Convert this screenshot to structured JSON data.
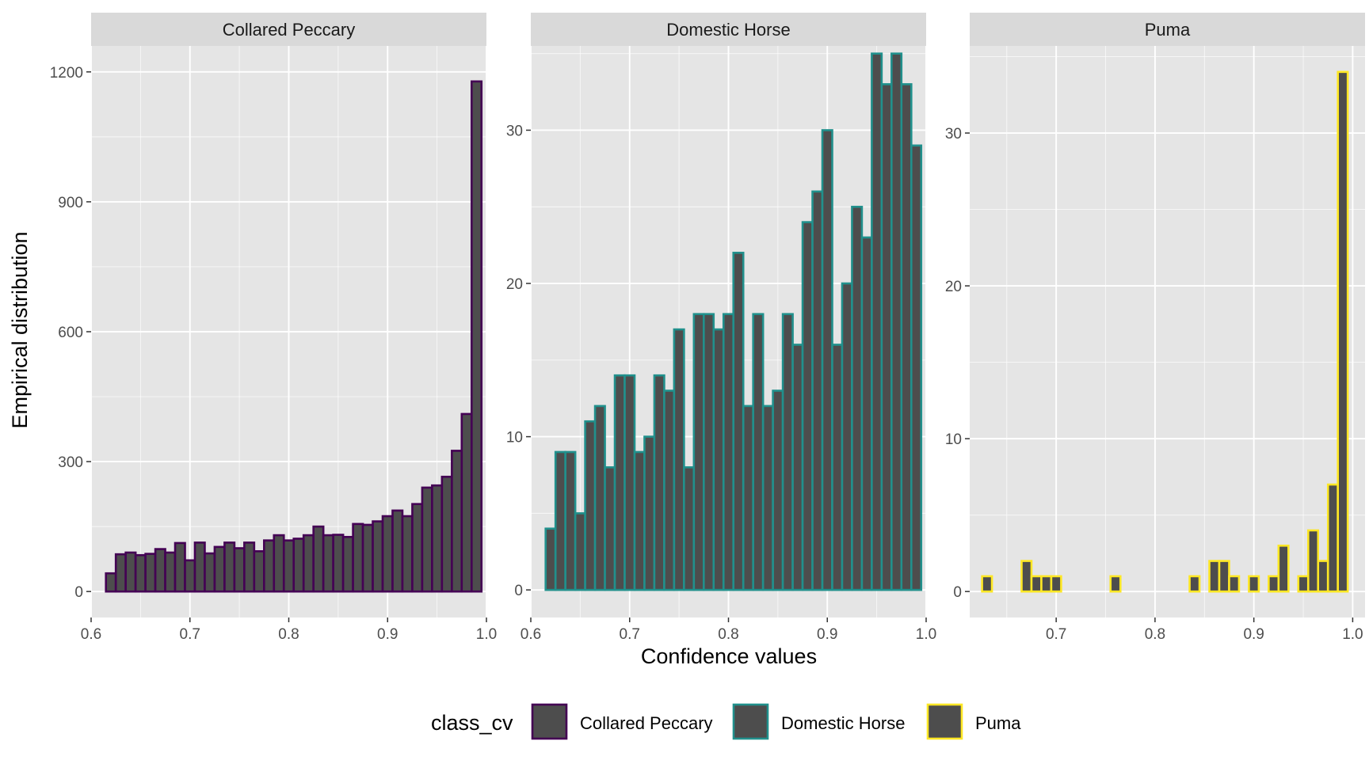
{
  "chart_data": {
    "type": "bar",
    "xlabel": "Confidence values",
    "ylabel": "Empirical distribution",
    "bar_fill": "#4d4d4d",
    "panel_bg": "#e5e5e5",
    "strip_bg": "#d9d9d9",
    "grid_color": "#ffffff",
    "x_ticks": [
      "0.6",
      "0.7",
      "0.8",
      "0.9",
      "1.0"
    ],
    "x_tick_values": [
      0.6,
      0.7,
      0.8,
      0.9,
      1.0
    ],
    "bin_width": 0.01,
    "legend": {
      "title": "class_cv",
      "position": "bottom",
      "entries": [
        {
          "label": "Collared Peccary",
          "color": "#440154"
        },
        {
          "label": "Domestic Horse",
          "color": "#21908c"
        },
        {
          "label": "Puma",
          "color": "#fde725"
        }
      ]
    },
    "panels": [
      {
        "title": "Collared Peccary",
        "color": "#440154",
        "xlim": [
          0.6,
          1.0
        ],
        "ylim": [
          -60,
          1260
        ],
        "y_ticks": [
          "0",
          "300",
          "600",
          "900",
          "1200"
        ],
        "y_tick_values": [
          0,
          300,
          600,
          900,
          1200
        ],
        "x_tick_labels": [
          "0.6",
          "0.7",
          "0.8",
          "0.9",
          "1.0"
        ],
        "x_tick_values": [
          0.6,
          0.7,
          0.8,
          0.9,
          1.0
        ],
        "bins": [
          {
            "x": 0.62,
            "count": 42
          },
          {
            "x": 0.63,
            "count": 86
          },
          {
            "x": 0.64,
            "count": 90
          },
          {
            "x": 0.65,
            "count": 84
          },
          {
            "x": 0.66,
            "count": 87
          },
          {
            "x": 0.67,
            "count": 98
          },
          {
            "x": 0.68,
            "count": 90
          },
          {
            "x": 0.69,
            "count": 112
          },
          {
            "x": 0.7,
            "count": 72
          },
          {
            "x": 0.71,
            "count": 113
          },
          {
            "x": 0.72,
            "count": 88
          },
          {
            "x": 0.73,
            "count": 103
          },
          {
            "x": 0.74,
            "count": 113
          },
          {
            "x": 0.75,
            "count": 100
          },
          {
            "x": 0.76,
            "count": 113
          },
          {
            "x": 0.77,
            "count": 93
          },
          {
            "x": 0.78,
            "count": 118
          },
          {
            "x": 0.79,
            "count": 130
          },
          {
            "x": 0.8,
            "count": 118
          },
          {
            "x": 0.81,
            "count": 122
          },
          {
            "x": 0.82,
            "count": 130
          },
          {
            "x": 0.83,
            "count": 150
          },
          {
            "x": 0.84,
            "count": 130
          },
          {
            "x": 0.85,
            "count": 131
          },
          {
            "x": 0.86,
            "count": 126
          },
          {
            "x": 0.87,
            "count": 156
          },
          {
            "x": 0.88,
            "count": 154
          },
          {
            "x": 0.89,
            "count": 162
          },
          {
            "x": 0.9,
            "count": 174
          },
          {
            "x": 0.91,
            "count": 187
          },
          {
            "x": 0.92,
            "count": 174
          },
          {
            "x": 0.93,
            "count": 202
          },
          {
            "x": 0.94,
            "count": 240
          },
          {
            "x": 0.95,
            "count": 245
          },
          {
            "x": 0.96,
            "count": 265
          },
          {
            "x": 0.97,
            "count": 325
          },
          {
            "x": 0.98,
            "count": 410
          },
          {
            "x": 0.99,
            "count": 1178
          }
        ]
      },
      {
        "title": "Domestic Horse",
        "color": "#21908c",
        "xlim": [
          0.6,
          1.0
        ],
        "ylim": [
          -1.8,
          35.5
        ],
        "y_ticks": [
          "0",
          "10",
          "20",
          "30"
        ],
        "y_tick_values": [
          0,
          10,
          20,
          30
        ],
        "x_tick_labels": [
          "0.6",
          "0.7",
          "0.8",
          "0.9",
          "1.0"
        ],
        "x_tick_values": [
          0.6,
          0.7,
          0.8,
          0.9,
          1.0
        ],
        "bins": [
          {
            "x": 0.62,
            "count": 4
          },
          {
            "x": 0.63,
            "count": 9
          },
          {
            "x": 0.64,
            "count": 9
          },
          {
            "x": 0.65,
            "count": 5
          },
          {
            "x": 0.66,
            "count": 11
          },
          {
            "x": 0.67,
            "count": 12
          },
          {
            "x": 0.68,
            "count": 8
          },
          {
            "x": 0.69,
            "count": 14
          },
          {
            "x": 0.7,
            "count": 14
          },
          {
            "x": 0.71,
            "count": 9
          },
          {
            "x": 0.72,
            "count": 10
          },
          {
            "x": 0.73,
            "count": 14
          },
          {
            "x": 0.74,
            "count": 13
          },
          {
            "x": 0.75,
            "count": 17
          },
          {
            "x": 0.76,
            "count": 8
          },
          {
            "x": 0.77,
            "count": 18
          },
          {
            "x": 0.78,
            "count": 18
          },
          {
            "x": 0.79,
            "count": 17
          },
          {
            "x": 0.8,
            "count": 18
          },
          {
            "x": 0.81,
            "count": 22
          },
          {
            "x": 0.82,
            "count": 12
          },
          {
            "x": 0.83,
            "count": 18
          },
          {
            "x": 0.84,
            "count": 12
          },
          {
            "x": 0.85,
            "count": 13
          },
          {
            "x": 0.86,
            "count": 18
          },
          {
            "x": 0.87,
            "count": 16
          },
          {
            "x": 0.88,
            "count": 24
          },
          {
            "x": 0.89,
            "count": 26
          },
          {
            "x": 0.9,
            "count": 30
          },
          {
            "x": 0.91,
            "count": 16
          },
          {
            "x": 0.92,
            "count": 20
          },
          {
            "x": 0.93,
            "count": 25
          },
          {
            "x": 0.94,
            "count": 23
          },
          {
            "x": 0.95,
            "count": 35
          },
          {
            "x": 0.96,
            "count": 33
          },
          {
            "x": 0.97,
            "count": 35
          },
          {
            "x": 0.98,
            "count": 33
          },
          {
            "x": 0.99,
            "count": 29
          }
        ]
      },
      {
        "title": "Puma",
        "color": "#fde725",
        "xlim": [
          0.6125,
          1.0125
        ],
        "ylim": [
          -1.7,
          35.7
        ],
        "y_ticks": [
          "0",
          "10",
          "20",
          "30"
        ],
        "y_tick_values": [
          0,
          10,
          20,
          30
        ],
        "x_tick_labels": [
          "0.7",
          "0.8",
          "0.9",
          "1.0"
        ],
        "x_tick_values": [
          0.7,
          0.8,
          0.9,
          1.0
        ],
        "bins": [
          {
            "x": 0.63,
            "count": 1
          },
          {
            "x": 0.64,
            "count": 0
          },
          {
            "x": 0.65,
            "count": 0
          },
          {
            "x": 0.66,
            "count": 0
          },
          {
            "x": 0.67,
            "count": 2
          },
          {
            "x": 0.68,
            "count": 1
          },
          {
            "x": 0.69,
            "count": 1
          },
          {
            "x": 0.7,
            "count": 1
          },
          {
            "x": 0.71,
            "count": 0
          },
          {
            "x": 0.72,
            "count": 0
          },
          {
            "x": 0.73,
            "count": 0
          },
          {
            "x": 0.74,
            "count": 0
          },
          {
            "x": 0.75,
            "count": 0
          },
          {
            "x": 0.76,
            "count": 1
          },
          {
            "x": 0.77,
            "count": 0
          },
          {
            "x": 0.78,
            "count": 0
          },
          {
            "x": 0.79,
            "count": 0
          },
          {
            "x": 0.8,
            "count": 0
          },
          {
            "x": 0.81,
            "count": 0
          },
          {
            "x": 0.82,
            "count": 0
          },
          {
            "x": 0.83,
            "count": 0
          },
          {
            "x": 0.84,
            "count": 1
          },
          {
            "x": 0.85,
            "count": 0
          },
          {
            "x": 0.86,
            "count": 2
          },
          {
            "x": 0.87,
            "count": 2
          },
          {
            "x": 0.88,
            "count": 1
          },
          {
            "x": 0.89,
            "count": 0
          },
          {
            "x": 0.9,
            "count": 1
          },
          {
            "x": 0.91,
            "count": 0
          },
          {
            "x": 0.92,
            "count": 1
          },
          {
            "x": 0.93,
            "count": 3
          },
          {
            "x": 0.94,
            "count": 0
          },
          {
            "x": 0.95,
            "count": 1
          },
          {
            "x": 0.96,
            "count": 4
          },
          {
            "x": 0.97,
            "count": 2
          },
          {
            "x": 0.98,
            "count": 7
          },
          {
            "x": 0.99,
            "count": 34
          }
        ]
      }
    ]
  }
}
